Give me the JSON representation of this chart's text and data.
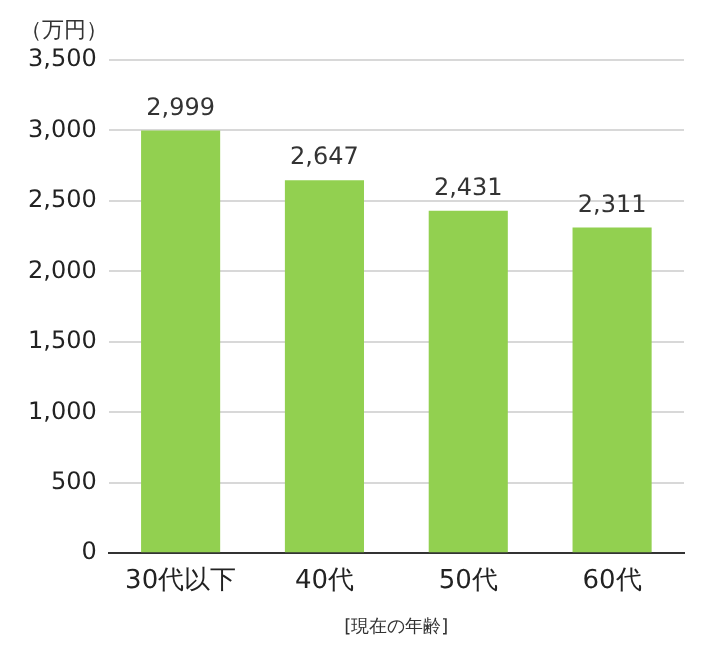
{
  "chart_data": {
    "type": "bar",
    "ylabel": "（万円）",
    "xlabel": "[現在の年齢]",
    "categories": [
      "30代以下",
      "40代",
      "50代",
      "60代"
    ],
    "values": [
      2999,
      2647,
      2431,
      2311
    ],
    "value_labels": [
      "2,999",
      "2,647",
      "2,431",
      "2,311"
    ],
    "color": "#92d050",
    "ylim": [
      0,
      3500
    ],
    "yticks": [
      {
        "value": 0,
        "label": "0"
      },
      {
        "value": 500,
        "label": "500"
      },
      {
        "value": 1000,
        "label": "1,000"
      },
      {
        "value": 1500,
        "label": "1,500"
      },
      {
        "value": 2000,
        "label": "2,000"
      },
      {
        "value": 2500,
        "label": "2,500"
      },
      {
        "value": 3000,
        "label": "3,000"
      },
      {
        "value": 3500,
        "label": "3,500"
      }
    ],
    "grid": "y"
  }
}
